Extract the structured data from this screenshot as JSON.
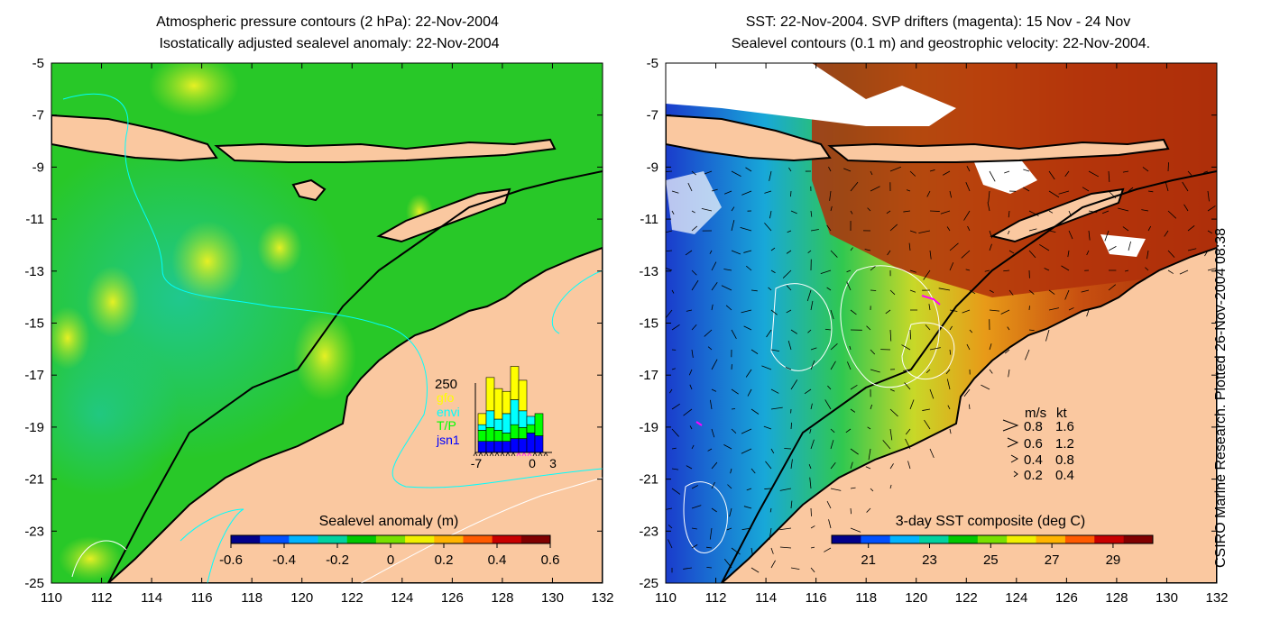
{
  "left_panel": {
    "title_line1": "Atmospheric pressure contours (2 hPa): 22-Nov-2004",
    "title_line2": "Isostatically adjusted sealevel anomaly: 22-Nov-2004",
    "colorbar_label": "Sealevel anomaly (m)",
    "colorbar_ticks": [
      "-0.6",
      "-0.4",
      "-0.2",
      "0",
      "0.2",
      "0.4",
      "0.6"
    ],
    "colorbar_colors": [
      "#00008b",
      "#0050ff",
      "#00b4ff",
      "#00d2a0",
      "#00c800",
      "#78e000",
      "#f0f000",
      "#ffb400",
      "#ff5a00",
      "#c80000",
      "#800000"
    ],
    "inset": {
      "top_value": "250",
      "legend": [
        {
          "label": "gfo",
          "color": "#ffff00"
        },
        {
          "label": "envi",
          "color": "#00ffff"
        },
        {
          "label": "T/P",
          "color": "#00ff00"
        },
        {
          "label": "jsn1",
          "color": "#0000ff"
        }
      ],
      "x_ticks": [
        "-7",
        "0",
        "3"
      ],
      "bars": [
        {
          "jsn1": 20,
          "tp": 20,
          "envi": 10,
          "gfo": 20
        },
        {
          "jsn1": 20,
          "tp": 25,
          "envi": 30,
          "gfo": 60
        },
        {
          "jsn1": 20,
          "tp": 20,
          "envi": 20,
          "gfo": 55
        },
        {
          "jsn1": 20,
          "tp": 15,
          "envi": 35,
          "gfo": 40
        },
        {
          "jsn1": 25,
          "tp": 25,
          "envi": 45,
          "gfo": 60
        },
        {
          "jsn1": 25,
          "tp": 20,
          "envi": 30,
          "gfo": 55
        },
        {
          "jsn1": 35,
          "tp": 15,
          "envi": 15,
          "gfo": 0
        },
        {
          "jsn1": 30,
          "tp": 40,
          "envi": 0,
          "gfo": 0
        }
      ]
    }
  },
  "right_panel": {
    "title_line1": "SST: 22-Nov-2004. SVP drifters (magenta): 15 Nov - 24 Nov",
    "title_line2": "Sealevel contours (0.1 m) and geostrophic velocity: 22-Nov-2004.",
    "colorbar_label": "3-day SST composite (deg C)",
    "colorbar_ticks": [
      "21",
      "23",
      "25",
      "27",
      "29"
    ],
    "colorbar_colors": [
      "#00008b",
      "#0050ff",
      "#00b4ff",
      "#00d2a0",
      "#00c800",
      "#78e000",
      "#f0f000",
      "#ffb400",
      "#ff5a00",
      "#c80000",
      "#800000"
    ],
    "velocity_legend": {
      "header_ms": "m/s",
      "header_kt": "kt",
      "rows": [
        {
          "ms": "0.8",
          "kt": "1.6"
        },
        {
          "ms": "0.6",
          "kt": "1.2"
        },
        {
          "ms": "0.4",
          "kt": "0.8"
        },
        {
          "ms": "0.2",
          "kt": "0.4"
        }
      ]
    }
  },
  "axes": {
    "x_ticks": [
      "110",
      "112",
      "114",
      "116",
      "118",
      "120",
      "122",
      "124",
      "126",
      "128",
      "130",
      "132"
    ],
    "y_ticks": [
      "-5",
      "-7",
      "-9",
      "-11",
      "-13",
      "-15",
      "-17",
      "-19",
      "-21",
      "-23",
      "-25"
    ]
  },
  "side_note": "CSIRO Marine Research. Plotted 26-Nov-2004 08:38",
  "colors": {
    "land": "#fac8a0",
    "ocean_left": "#28c828",
    "ocean_right": "#b43c00",
    "coast": "#000000"
  }
}
